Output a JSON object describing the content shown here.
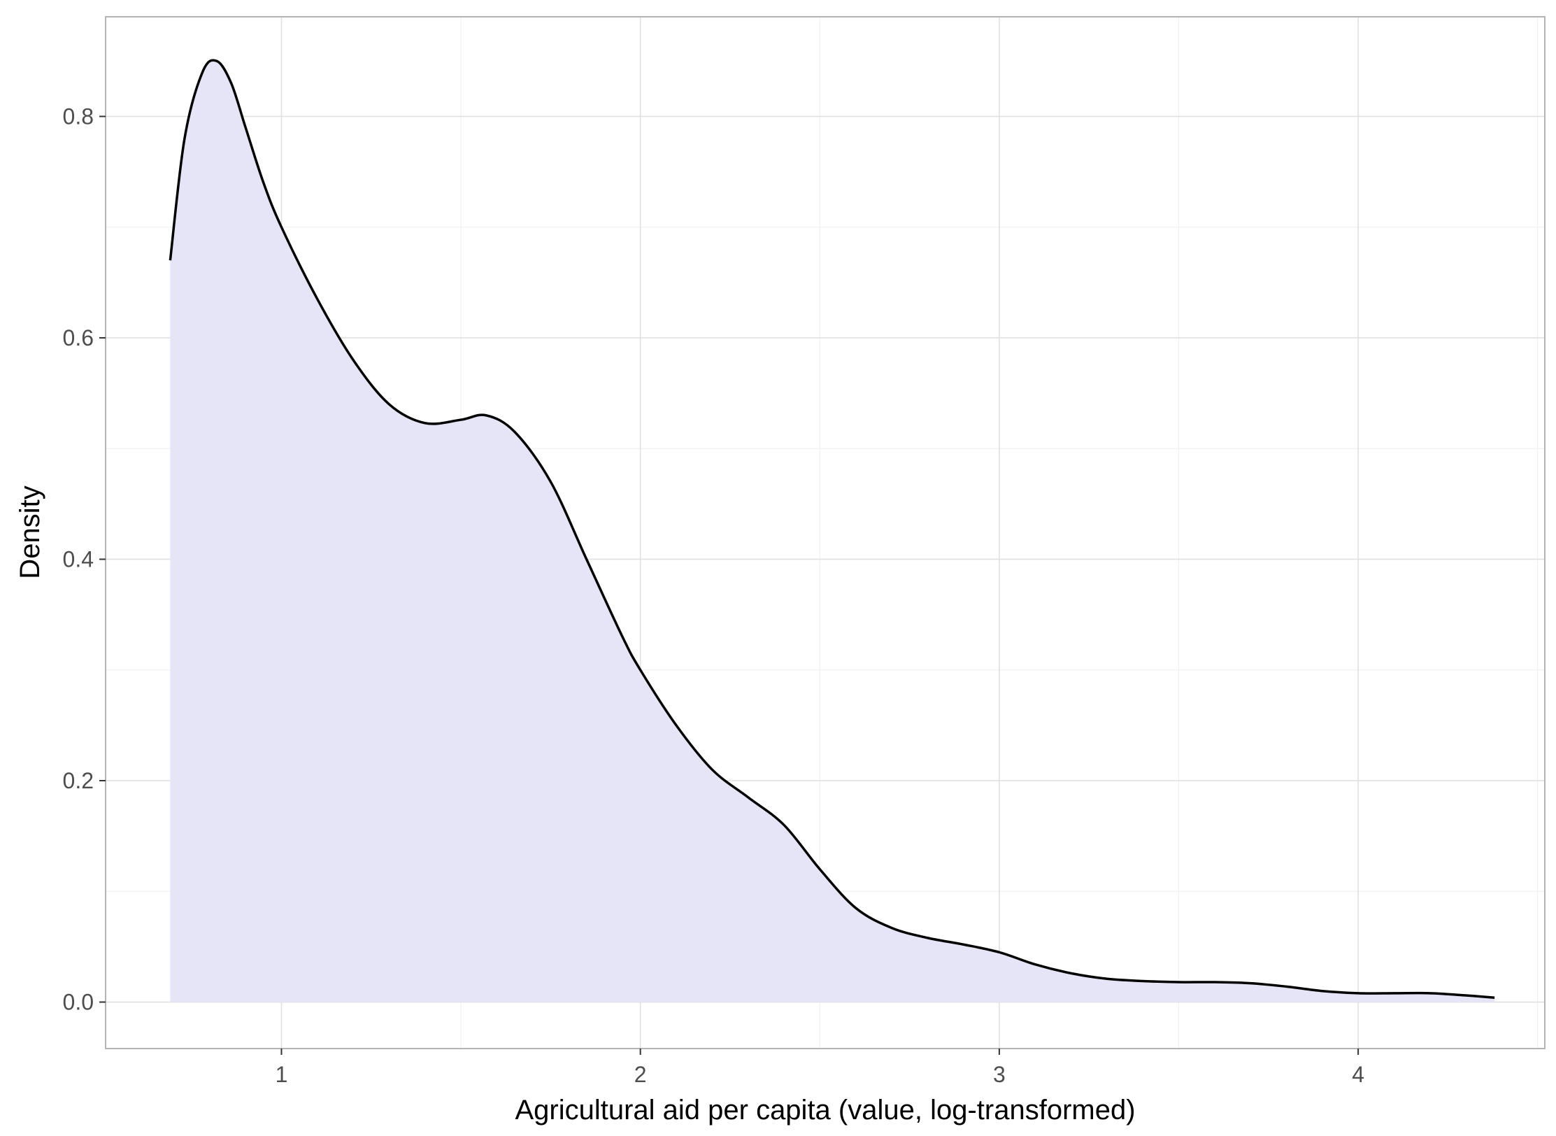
{
  "chart_data": {
    "type": "area",
    "title": "",
    "xlabel": "Agricultural aid per capita (value, log-transformed)",
    "ylabel": "Density",
    "xlim": [
      0.51,
      4.52
    ],
    "ylim": [
      -0.042,
      0.89
    ],
    "x_ticks": [
      1,
      2,
      3,
      4
    ],
    "x_tick_labels": [
      "1",
      "2",
      "3",
      "4"
    ],
    "y_ticks": [
      0.0,
      0.2,
      0.4,
      0.6,
      0.8
    ],
    "y_tick_labels": [
      "0.0",
      "0.2",
      "0.4",
      "0.6",
      "0.8"
    ],
    "grid": true,
    "legend": "none",
    "fill_color": "#e5e5f7",
    "line_color": "#000000",
    "series": [
      {
        "x": [
          0.69,
          0.73,
          0.78,
          0.82,
          0.86,
          0.9,
          0.95,
          1.0,
          1.1,
          1.2,
          1.3,
          1.4,
          1.5,
          1.57,
          1.65,
          1.75,
          1.85,
          1.95,
          2.0,
          2.1,
          2.2,
          2.3,
          2.4,
          2.5,
          2.6,
          2.7,
          2.8,
          2.9,
          3.0,
          3.1,
          3.2,
          3.3,
          3.4,
          3.5,
          3.6,
          3.7,
          3.8,
          3.9,
          4.0,
          4.1,
          4.2,
          4.3,
          4.38
        ],
        "values": [
          0.67,
          0.78,
          0.84,
          0.85,
          0.83,
          0.79,
          0.74,
          0.7,
          0.635,
          0.58,
          0.54,
          0.523,
          0.526,
          0.53,
          0.515,
          0.47,
          0.4,
          0.33,
          0.3,
          0.25,
          0.21,
          0.185,
          0.16,
          0.12,
          0.085,
          0.067,
          0.058,
          0.052,
          0.045,
          0.034,
          0.026,
          0.021,
          0.019,
          0.018,
          0.018,
          0.017,
          0.014,
          0.01,
          0.008,
          0.008,
          0.008,
          0.006,
          0.004
        ]
      }
    ]
  }
}
